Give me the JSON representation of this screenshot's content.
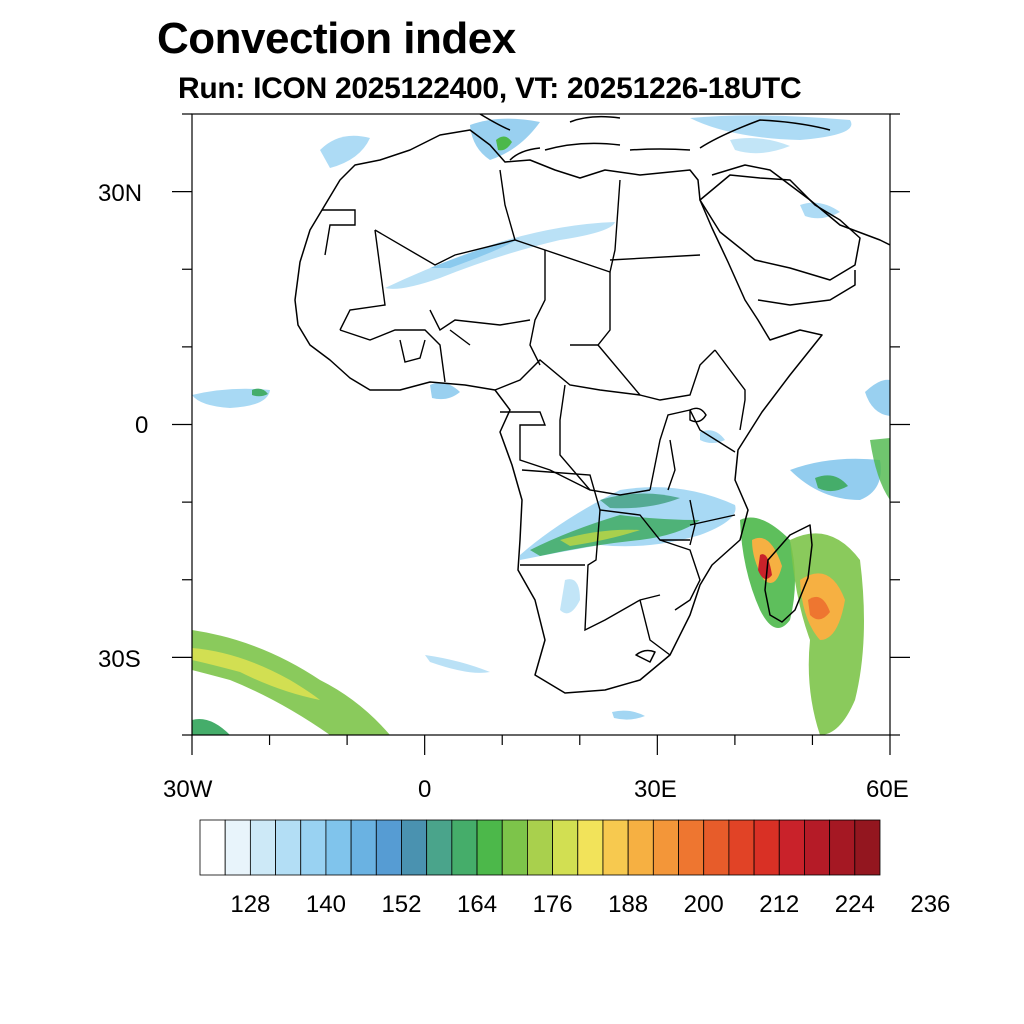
{
  "title": "Convection index",
  "subtitle": "Run: ICON 2025122400,  VT: 20251226-18UTC",
  "axes": {
    "lon_labels": [
      "30W",
      "0",
      "30E",
      "60E"
    ],
    "lat_labels": [
      "30N",
      "0",
      "30S"
    ],
    "lon_range": [
      -30,
      60
    ],
    "lat_range": [
      -40,
      40
    ]
  },
  "colorbar": {
    "tick_labels": [
      "128",
      "140",
      "152",
      "164",
      "176",
      "188",
      "200",
      "212",
      "224",
      "236"
    ],
    "colors": [
      "#ffffff",
      "#e8f4fb",
      "#cde9f7",
      "#b3def5",
      "#99d2f2",
      "#80c4ec",
      "#6ab2e2",
      "#569cd3",
      "#4a92b0",
      "#4aa48b",
      "#45ad6a",
      "#4cb84a",
      "#7dc44a",
      "#a9d04d",
      "#d2df52",
      "#f2e35a",
      "#f7c94f",
      "#f6b042",
      "#f39639",
      "#ee7630",
      "#e75c2a",
      "#e14326",
      "#d93025",
      "#c9222a",
      "#b51b27",
      "#a51823",
      "#93161f"
    ]
  }
}
